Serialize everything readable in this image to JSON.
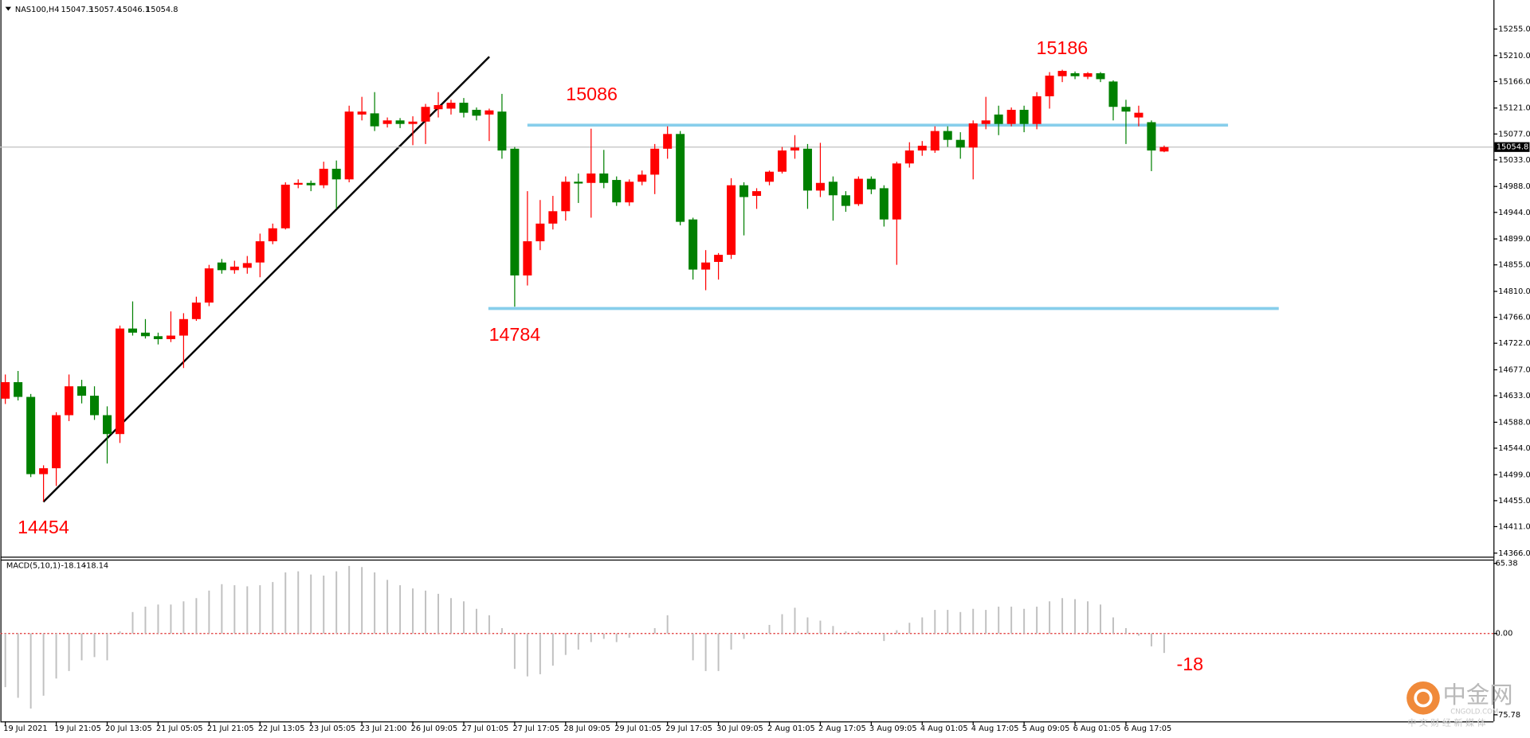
{
  "chart_data": [
    {
      "type": "candlestick",
      "symbol": "NAS100,H4",
      "categories": [
        "19 Jul 2021",
        null,
        null,
        null,
        "19 Jul 21:05",
        null,
        null,
        null,
        "20 Jul 13:05",
        null,
        null,
        null,
        "21 Jul 05:05",
        null,
        null,
        null,
        "21 Jul 21:05",
        null,
        null,
        null,
        "22 Jul 13:05",
        null,
        null,
        null,
        "23 Jul 05:05",
        null,
        null,
        null,
        "23 Jul 21:00",
        null,
        null,
        null,
        "26 Jul 09:05",
        null,
        null,
        null,
        "27 Jul 01:05",
        null,
        null,
        null,
        "27 Jul 17:05",
        null,
        null,
        null,
        "28 Jul 09:05",
        null,
        null,
        null,
        "29 Jul 01:05",
        null,
        null,
        null,
        "29 Jul 17:05",
        null,
        null,
        null,
        "30 Jul 09:05",
        null,
        null,
        null,
        "2 Aug 01:05",
        null,
        null,
        null,
        "2 Aug 17:05",
        null,
        null,
        null,
        "3 Aug 09:05",
        null,
        null,
        null,
        "4 Aug 01:05",
        null,
        null,
        null,
        "4 Aug 17:05",
        null,
        null,
        null,
        "5 Aug 09:05",
        null,
        null,
        null,
        "6 Aug 01:05",
        null,
        null,
        null,
        "6 Aug 17:05",
        null,
        null,
        null
      ],
      "open": [
        14628,
        14656,
        14631,
        14500,
        14510,
        14600,
        14649,
        14633,
        14600,
        14568,
        14747,
        14740,
        14734,
        14729,
        14735,
        14763,
        14791,
        14859,
        14846,
        14850,
        14859,
        14895,
        14917,
        14991,
        14994,
        14990,
        15018,
        15000,
        15110,
        15112,
        15094,
        15100,
        15094,
        15098,
        15119,
        15120,
        15130,
        15118,
        15110,
        15115,
        15052,
        14837,
        14895,
        14925,
        14946,
        14996,
        14994,
        15010,
        14999,
        14961,
        14996,
        15008,
        15052,
        15077,
        14932,
        14847,
        14860,
        14872,
        14990,
        14972,
        14996,
        15013,
        15049,
        15052,
        14981,
        14996,
        14973,
        14958,
        15001,
        14985,
        14932,
        15027,
        15049,
        15049,
        15082,
        15067,
        15054,
        15094,
        15110,
        15094,
        15118,
        15094,
        15141,
        15175,
        15180,
        15174,
        15180,
        15166,
        15123,
        15105,
        15097,
        15047.3
      ],
      "high": [
        14669,
        14675,
        14636,
        14515,
        14605,
        14669,
        14660,
        14649,
        14615,
        14752,
        14793,
        14763,
        14740,
        14776,
        14773,
        14801,
        14855,
        14865,
        14862,
        14870,
        14908,
        14925,
        14995,
        15000,
        14998,
        15030,
        15032,
        15125,
        15140,
        15148,
        15105,
        15104,
        15107,
        15128,
        15148,
        15135,
        15138,
        15122,
        15120,
        15145,
        15055,
        14980,
        14965,
        14972,
        15005,
        15010,
        15086,
        15050,
        15005,
        15000,
        15015,
        15060,
        15090,
        15082,
        14935,
        14880,
        14875,
        15002,
        14995,
        14985,
        15015,
        15055,
        15075,
        15060,
        15062,
        15005,
        14980,
        15005,
        15005,
        14990,
        15030,
        15063,
        15065,
        15090,
        15090,
        15080,
        15100,
        15140,
        15125,
        15122,
        15125,
        15148,
        15182,
        15186,
        15183,
        15182,
        15182,
        15168,
        15135,
        15125,
        15100,
        15057.4
      ],
      "low": [
        14619,
        14625,
        14495,
        14454,
        14480,
        14590,
        14620,
        14592,
        14518,
        14553,
        14735,
        14730,
        14720,
        14724,
        14680,
        14760,
        14785,
        14840,
        14840,
        14840,
        14834,
        14890,
        14915,
        14985,
        14980,
        14985,
        14950,
        14995,
        15100,
        15082,
        15088,
        15087,
        15058,
        15060,
        15105,
        15110,
        15105,
        15100,
        15065,
        15035,
        14784,
        14820,
        14880,
        14915,
        14930,
        14960,
        14935,
        14985,
        14955,
        14955,
        14990,
        14975,
        15035,
        14922,
        14830,
        14812,
        14830,
        14865,
        14905,
        14950,
        14990,
        15010,
        15035,
        14950,
        14970,
        14930,
        14945,
        14955,
        14975,
        14920,
        14855,
        15020,
        15040,
        15045,
        15055,
        15035,
        15000,
        15085,
        15075,
        15090,
        15080,
        15085,
        15120,
        15165,
        15170,
        15170,
        15165,
        15100,
        15060,
        15090,
        15014,
        15046.1
      ],
      "close": [
        14656,
        14631,
        14500,
        14510,
        14600,
        14649,
        14633,
        14600,
        14568,
        14747,
        14740,
        14734,
        14729,
        14735,
        14763,
        14791,
        14849,
        14846,
        14852,
        14858,
        14895,
        14917,
        14991,
        14994,
        14990,
        15018,
        15000,
        15115,
        15115,
        15090,
        15100,
        15094,
        15098,
        15123,
        15126,
        15130,
        15113,
        15108,
        15117,
        15049,
        14837,
        14895,
        14925,
        14946,
        14996,
        14993,
        15010,
        14994,
        14961,
        14996,
        15008,
        15052,
        15077,
        14928,
        14847,
        14859,
        14872,
        14990,
        14970,
        14980,
        15013,
        15049,
        15054,
        14981,
        14994,
        14973,
        14955,
        15001,
        14983,
        14932,
        15027,
        15049,
        15057,
        15082,
        15067,
        15054,
        15095,
        15100,
        15094,
        15118,
        15094,
        15141,
        15176,
        15184,
        15175,
        15180,
        15170,
        15123,
        15115,
        15113,
        15049,
        15054.8
      ],
      "up_color": "#ff0000",
      "down_color": "#008000",
      "ylim": [
        14360,
        15296
      ],
      "yticks": [
        {
          "value": 15255,
          "label": "15255.0"
        },
        {
          "value": 15210,
          "label": "15210.0"
        },
        {
          "value": 15166,
          "label": "15166.0"
        },
        {
          "value": 15121,
          "label": "15121.0"
        },
        {
          "value": 15077,
          "label": "15077.0"
        },
        {
          "value": 15033,
          "label": "15033.0"
        },
        {
          "value": 14988,
          "label": "14988.0"
        },
        {
          "value": 14944,
          "label": "14944.0"
        },
        {
          "value": 14899,
          "label": "14899.0"
        },
        {
          "value": 14855,
          "label": "14855.0"
        },
        {
          "value": 14810,
          "label": "14810.0"
        },
        {
          "value": 14766,
          "label": "14766.0"
        },
        {
          "value": 14722,
          "label": "14722.0"
        },
        {
          "value": 14677,
          "label": "14677.0"
        },
        {
          "value": 14633,
          "label": "14633.0"
        },
        {
          "value": 14588,
          "label": "14588.0"
        },
        {
          "value": 14544,
          "label": "14544.0"
        },
        {
          "value": 14499,
          "label": "14499.0"
        },
        {
          "value": 14455,
          "label": "14455.0"
        },
        {
          "value": 14411,
          "label": "14411.0"
        },
        {
          "value": 14366,
          "label": "14366.0"
        }
      ],
      "annotations": [
        15186,
        15086,
        14784,
        14454
      ],
      "annotation_color": "#ff0000",
      "levels": [
        15092,
        14781
      ],
      "level_color": "#87ceeb",
      "trendline": [
        14453,
        15208
      ],
      "trendline_color": "#000000"
    },
    {
      "type": "bar",
      "title": "MACD(5,10,1)",
      "values": [
        -50,
        -60,
        -70,
        -58,
        -42,
        -35,
        -25,
        -22,
        -25,
        2,
        20,
        25,
        27,
        27,
        30,
        33,
        40,
        46,
        45,
        44,
        45,
        48,
        57,
        58,
        55,
        54,
        58,
        63,
        62,
        57,
        50,
        45,
        42,
        40,
        37,
        33,
        30,
        23,
        17,
        5,
        -33,
        -40,
        -38,
        -30,
        -20,
        -15,
        -8,
        -5,
        -8,
        -4,
        0,
        5,
        17,
        0,
        -25,
        -35,
        -35,
        -15,
        -5,
        0,
        8,
        18,
        24,
        15,
        12,
        7,
        2,
        2,
        0,
        -7,
        3,
        10,
        15,
        22,
        22,
        20,
        23,
        22,
        25,
        25,
        23,
        25,
        30,
        33,
        32,
        30,
        27,
        15,
        5,
        -2,
        -12,
        -18.14
      ],
      "color": "#c0c0c0",
      "ylim": [
        -82,
        68
      ],
      "yticks": [
        65.38,
        {
          "value": 0,
          "label": "0.00"
        },
        -75.78
      ],
      "annotation": -18
    }
  ],
  "watermark": {
    "title": "中金网",
    "site": "CNGOLD.COM",
    "tagline": "中 文 财 经 新 媒 体"
  }
}
